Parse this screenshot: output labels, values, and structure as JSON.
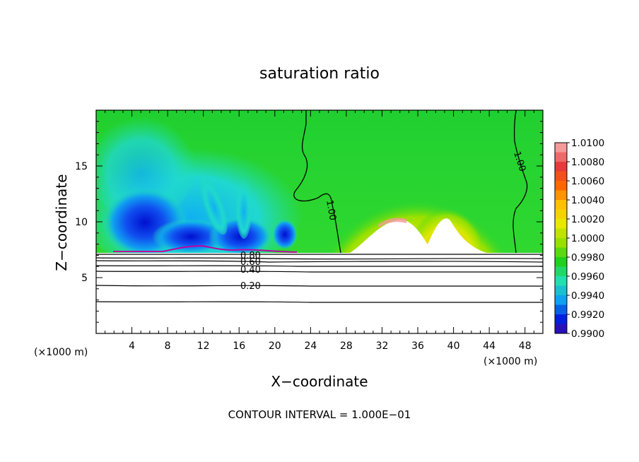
{
  "chart_data": {
    "type": "heatmap",
    "title": "saturation ratio",
    "xlabel": "X−coordinate",
    "ylabel": "Z−coordinate",
    "x_unit": "(×1000 m)",
    "y_unit": "(×1000 m)",
    "xlim": [
      0,
      50
    ],
    "ylim": [
      0,
      20
    ],
    "x_ticks": [
      4,
      8,
      12,
      16,
      20,
      24,
      28,
      32,
      36,
      40,
      44,
      48
    ],
    "y_ticks": [
      5,
      10,
      15
    ],
    "footer": "CONTOUR INTERVAL = 1.000E−01",
    "colorbar": {
      "labels": [
        "1.0100",
        "1.0080",
        "1.0060",
        "1.0040",
        "1.0020",
        "1.0000",
        "0.9980",
        "0.9960",
        "0.9940",
        "0.9920",
        "0.9900"
      ],
      "colors": [
        "#f49a9a",
        "#e83a3a",
        "#ff6600",
        "#ffc000",
        "#e8e800",
        "#98e000",
        "#20d020",
        "#20e0b0",
        "#10a0f0",
        "#0020e0",
        "#500090"
      ]
    },
    "contours": [
      {
        "label": "1.00",
        "region": "upper"
      },
      {
        "label": "1.00",
        "region": "upper-right"
      },
      {
        "label": "0.80",
        "level": 0.8
      },
      {
        "label": "0.60",
        "level": 0.6
      },
      {
        "label": "0.40",
        "level": 0.4
      },
      {
        "label": "0.20",
        "level": 0.2
      }
    ],
    "surface_height_z": 7.3,
    "dry_regions_x": [
      [
        26.5,
        44.5
      ]
    ],
    "moist_regions_x": [
      [
        0,
        26.5
      ]
    ]
  }
}
